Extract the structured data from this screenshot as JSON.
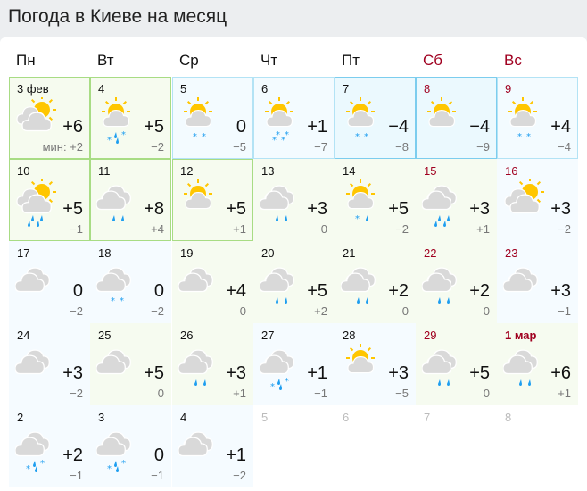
{
  "title": "Погода в Киеве на месяц",
  "weekdays": [
    {
      "label": "Пн",
      "weekend": false
    },
    {
      "label": "Вт",
      "weekend": false
    },
    {
      "label": "Ср",
      "weekend": false
    },
    {
      "label": "Чт",
      "weekend": false
    },
    {
      "label": "Пт",
      "weekend": false
    },
    {
      "label": "Сб",
      "weekend": true
    },
    {
      "label": "Вс",
      "weekend": true
    }
  ],
  "colors": {
    "sun": "#ffc600",
    "cloud": "#d9d9d9",
    "precip": "#1e9ef0",
    "weekend": "#a00020"
  },
  "min_prefix": "мин: ",
  "days": [
    {
      "date": "3 фев",
      "max": "+6",
      "min": "+2",
      "icon": "cloud-sun",
      "precip": "",
      "tone": "sel"
    },
    {
      "date": "4",
      "max": "+5",
      "min": "−2",
      "icon": "sun-cloud",
      "precip": "rain-snow",
      "tone": "sel"
    },
    {
      "date": "5",
      "max": "0",
      "min": "−5",
      "icon": "sun-cloud",
      "precip": "snow",
      "tone": "bl"
    },
    {
      "date": "6",
      "max": "+1",
      "min": "−7",
      "icon": "sun-cloud",
      "precip": "snow-heavy",
      "tone": "bl"
    },
    {
      "date": "7",
      "max": "−4",
      "min": "−8",
      "icon": "sun-cloud",
      "precip": "snow",
      "tone": "bs"
    },
    {
      "date": "8",
      "max": "−4",
      "min": "−9",
      "icon": "sun-cloud",
      "precip": "",
      "tone": "bs",
      "weekend": true
    },
    {
      "date": "9",
      "max": "+4",
      "min": "−4",
      "icon": "sun-cloud",
      "precip": "snow",
      "tone": "bl",
      "weekend": true
    },
    {
      "date": "10",
      "max": "+5",
      "min": "−1",
      "icon": "cloud-sun",
      "precip": "rain-heavy",
      "tone": "sel"
    },
    {
      "date": "11",
      "max": "+8",
      "min": "+4",
      "icon": "cloud",
      "precip": "rain",
      "tone": "sel"
    },
    {
      "date": "12",
      "max": "+5",
      "min": "+1",
      "icon": "sun-cloud",
      "precip": "",
      "tone": "sel"
    },
    {
      "date": "13",
      "max": "+3",
      "min": "0",
      "icon": "cloud",
      "precip": "rain",
      "tone": "g"
    },
    {
      "date": "14",
      "max": "+5",
      "min": "−2",
      "icon": "sun-cloud",
      "precip": "snow-rain",
      "tone": "g"
    },
    {
      "date": "15",
      "max": "+3",
      "min": "+1",
      "icon": "cloud",
      "precip": "rain-heavy",
      "tone": "g",
      "weekend": true
    },
    {
      "date": "16",
      "max": "+3",
      "min": "−2",
      "icon": "cloud-sun",
      "precip": "",
      "tone": "b",
      "weekend": true
    },
    {
      "date": "17",
      "max": "0",
      "min": "−2",
      "icon": "cloud",
      "precip": "",
      "tone": "b"
    },
    {
      "date": "18",
      "max": "0",
      "min": "−2",
      "icon": "cloud",
      "precip": "snow",
      "tone": "b"
    },
    {
      "date": "19",
      "max": "+4",
      "min": "0",
      "icon": "cloud",
      "precip": "",
      "tone": "g"
    },
    {
      "date": "20",
      "max": "+5",
      "min": "+2",
      "icon": "cloud",
      "precip": "rain",
      "tone": "g"
    },
    {
      "date": "21",
      "max": "+2",
      "min": "0",
      "icon": "cloud",
      "precip": "rain",
      "tone": "g"
    },
    {
      "date": "22",
      "max": "+2",
      "min": "0",
      "icon": "cloud",
      "precip": "rain",
      "tone": "g",
      "weekend": true
    },
    {
      "date": "23",
      "max": "+3",
      "min": "−1",
      "icon": "cloud",
      "precip": "",
      "tone": "b",
      "weekend": true
    },
    {
      "date": "24",
      "max": "+3",
      "min": "−2",
      "icon": "cloud",
      "precip": "",
      "tone": "b"
    },
    {
      "date": "25",
      "max": "+5",
      "min": "0",
      "icon": "cloud",
      "precip": "",
      "tone": "g"
    },
    {
      "date": "26",
      "max": "+3",
      "min": "+1",
      "icon": "cloud",
      "precip": "rain",
      "tone": "g"
    },
    {
      "date": "27",
      "max": "+1",
      "min": "−1",
      "icon": "cloud",
      "precip": "rain-snow",
      "tone": "b"
    },
    {
      "date": "28",
      "max": "+3",
      "min": "−5",
      "icon": "sun-cloud",
      "precip": "",
      "tone": "b"
    },
    {
      "date": "29",
      "max": "+5",
      "min": "0",
      "icon": "cloud",
      "precip": "rain",
      "tone": "g",
      "weekend": true
    },
    {
      "date": "1 мар",
      "max": "+6",
      "min": "+1",
      "icon": "cloud",
      "precip": "rain",
      "tone": "g",
      "weekend": true,
      "bold": true
    },
    {
      "date": "2",
      "max": "+2",
      "min": "−1",
      "icon": "cloud",
      "precip": "rain-snow",
      "tone": "b"
    },
    {
      "date": "3",
      "max": "0",
      "min": "−1",
      "icon": "cloud",
      "precip": "rain-snow",
      "tone": "b"
    },
    {
      "date": "4",
      "max": "+1",
      "min": "−2",
      "icon": "cloud",
      "precip": "",
      "tone": "b"
    },
    {
      "date": "5",
      "past": true
    },
    {
      "date": "6",
      "past": true
    },
    {
      "date": "7",
      "past": true
    },
    {
      "date": "8",
      "past": true
    }
  ]
}
